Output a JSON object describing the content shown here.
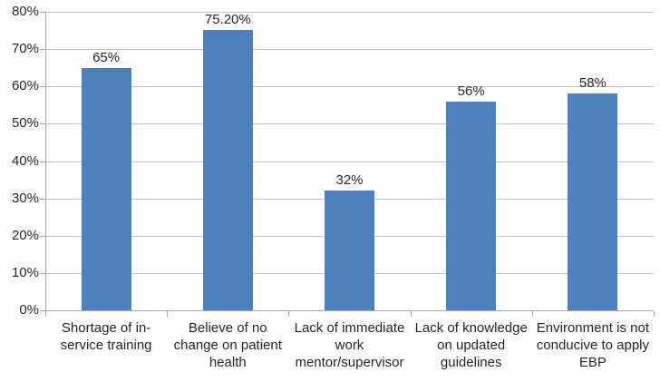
{
  "chart_data": {
    "type": "bar",
    "title": "",
    "xlabel": "",
    "ylabel": "",
    "categories": [
      "Shortage of in-service training",
      "Believe of no change on patient health",
      "Lack of immediate work mentor/supervisor",
      "Lack of knowledge on updated guidelines",
      "Environment is not conducive to apply EBP"
    ],
    "category_display": [
      "Shortage of in-\nservice training",
      "Believe of no\nchange on patient\nhealth",
      "Lack of immediate\nwork\nmentor/supervisor",
      "Lack of knowledge\non updated\nguidelines",
      "Environment is not\nconducive to apply\nEBP"
    ],
    "values": [
      65,
      75.2,
      32,
      56,
      58
    ],
    "value_labels": [
      "65%",
      "75.20%",
      "32%",
      "56%",
      "58%"
    ],
    "ylim": [
      0,
      80
    ],
    "ytick_labels": [
      "0%",
      "10%",
      "20%",
      "30%",
      "40%",
      "50%",
      "60%",
      "70%",
      "80%"
    ],
    "grid": true,
    "legend_position": "none",
    "colors": {
      "bar_fill": "#4D80BC",
      "gridline": "#C4C4C4",
      "axis_line": "#A6A6A6",
      "text": "#262626"
    }
  }
}
